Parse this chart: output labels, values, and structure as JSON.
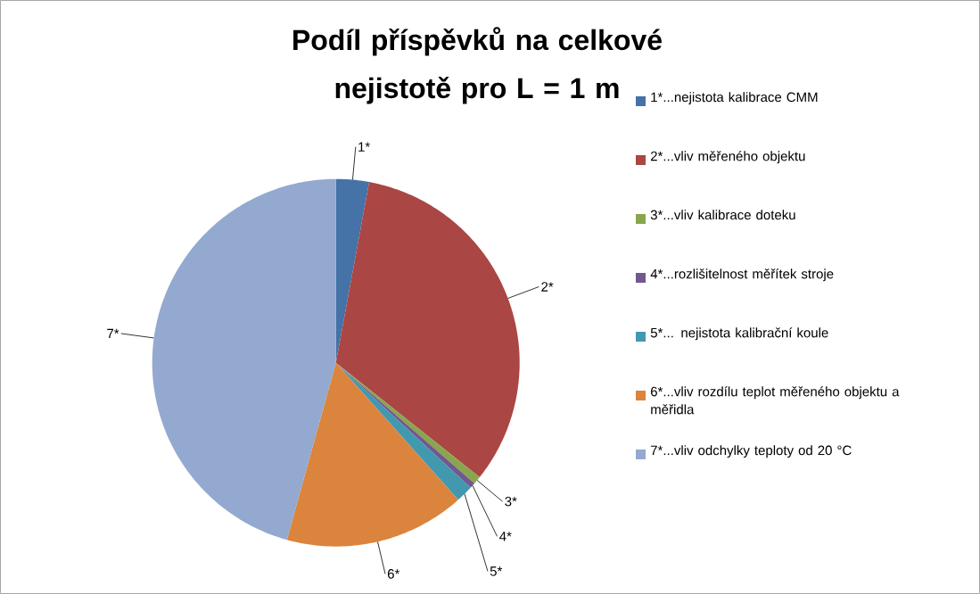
{
  "chart_data": {
    "type": "pie",
    "title": "Podíl příspěvků na celkové nejistotě pro L = 1 m",
    "categories": [
      "1*...nejistota kalibrace CMM",
      "2*...vliv měřeného objektu",
      "3*...vliv kalibrace doteku",
      "4*...rozlišitelnost měřítek stroje",
      "5*... nejistota kalibrační koule",
      "6*...vliv rozdílu teplot měřeného objektu a měřidla",
      "7*...vliv odchylky teploty od 20 °C"
    ],
    "values": [
      2.9,
      32.8,
      0.7,
      0.5,
      1.5,
      15.9,
      45.7
    ],
    "colors": [
      "#4572a7",
      "#aa4643",
      "#89a54e",
      "#71588f",
      "#4198af",
      "#db843d",
      "#93a9cf"
    ],
    "annotations": [
      "1*",
      "2*",
      "3*",
      "4*",
      "5*",
      "6*",
      "7*"
    ],
    "legend": "right"
  }
}
